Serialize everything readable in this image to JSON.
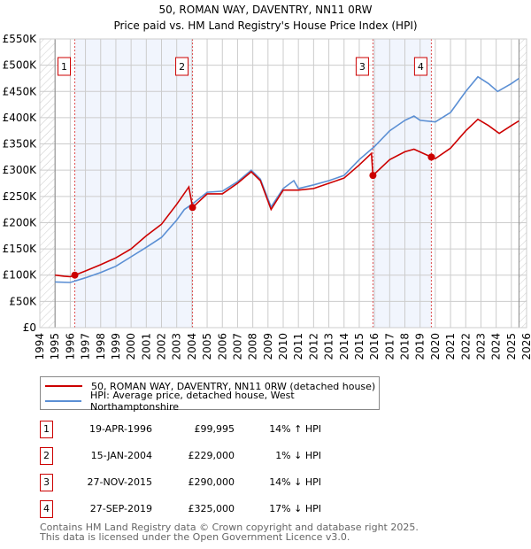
{
  "chart_data": {
    "type": "line",
    "title": "50, ROMAN WAY, DAVENTRY, NN11 0RW",
    "subtitle": "Price paid vs. HM Land Registry's House Price Index (HPI)",
    "xlim": [
      1994,
      2026
    ],
    "ylim": [
      0,
      550000
    ],
    "x_ticks": [
      "1994",
      "1995",
      "1996",
      "1997",
      "1998",
      "1999",
      "2000",
      "2001",
      "2002",
      "2003",
      "2004",
      "2005",
      "2006",
      "2007",
      "2008",
      "2009",
      "2010",
      "2011",
      "2012",
      "2013",
      "2014",
      "2015",
      "2016",
      "2017",
      "2018",
      "2019",
      "2020",
      "2021",
      "2022",
      "2023",
      "2024",
      "2025",
      "2026"
    ],
    "y_ticks": [
      {
        "v": 0,
        "label": "£0"
      },
      {
        "v": 50000,
        "label": "£50K"
      },
      {
        "v": 100000,
        "label": "£100K"
      },
      {
        "v": 150000,
        "label": "£150K"
      },
      {
        "v": 200000,
        "label": "£200K"
      },
      {
        "v": 250000,
        "label": "£250K"
      },
      {
        "v": 300000,
        "label": "£300K"
      },
      {
        "v": 350000,
        "label": "£350K"
      },
      {
        "v": 400000,
        "label": "£400K"
      },
      {
        "v": 450000,
        "label": "£450K"
      },
      {
        "v": 500000,
        "label": "£500K"
      },
      {
        "v": 550000,
        "label": "£550K"
      }
    ],
    "grid": true,
    "data_range": [
      1995,
      2025.5
    ],
    "shaded_periods": [
      [
        1996.3,
        2004.04
      ],
      [
        2015.9,
        2019.74
      ]
    ],
    "series": [
      {
        "name": "50, ROMAN WAY, DAVENTRY, NN11 0RW (detached house)",
        "color": "#cc0000",
        "x": [
          1995,
          1995.6,
          1996,
          1996.3,
          1997,
          1998,
          1999,
          2000,
          2001,
          2002,
          2003,
          2003.8,
          2004.04,
          2005,
          2006,
          2007,
          2007.9,
          2008.5,
          2009.2,
          2010,
          2011,
          2012,
          2013,
          2014,
          2015,
          2015.8,
          2015.9,
          2017,
          2018,
          2018.6,
          2019.74,
          2020,
          2021,
          2022,
          2022.8,
          2023.5,
          2024.2,
          2025,
          2025.5
        ],
        "y": [
          100000,
          98000,
          97000,
          99995,
          108000,
          120000,
          133000,
          150000,
          175000,
          197000,
          235000,
          268000,
          229000,
          255000,
          255000,
          275000,
          297000,
          280000,
          225000,
          262000,
          262000,
          265000,
          275000,
          285000,
          310000,
          332000,
          290000,
          320000,
          335000,
          340000,
          325000,
          322000,
          342000,
          375000,
          397000,
          385000,
          370000,
          385000,
          394000
        ]
      },
      {
        "name": "HPI: Average price, detached house, West Northamptonshire",
        "color": "#5b8fd4",
        "x": [
          1995,
          1996,
          1997,
          1998,
          1999,
          2000,
          2001,
          2002,
          2003,
          2003.5,
          2004,
          2005,
          2006,
          2007,
          2007.9,
          2008.5,
          2009.2,
          2010,
          2010.7,
          2011,
          2012,
          2013,
          2014,
          2015,
          2016,
          2017,
          2018,
          2018.6,
          2019,
          2020,
          2021,
          2022,
          2022.8,
          2023.5,
          2024.1,
          2025,
          2025.5
        ],
        "y": [
          87000,
          86000,
          95000,
          105000,
          117000,
          135000,
          153000,
          172000,
          205000,
          225000,
          235000,
          258000,
          260000,
          278000,
          300000,
          283000,
          230000,
          265000,
          280000,
          265000,
          272000,
          280000,
          290000,
          320000,
          345000,
          375000,
          395000,
          403000,
          395000,
          392000,
          410000,
          450000,
          478000,
          465000,
          450000,
          465000,
          475000
        ]
      }
    ],
    "markers": [
      {
        "id": "1",
        "x": 1996.3,
        "y": 99995
      },
      {
        "id": "2",
        "x": 2004.04,
        "y": 229000
      },
      {
        "id": "3",
        "x": 2015.9,
        "y": 290000
      },
      {
        "id": "4",
        "x": 2019.74,
        "y": 325000
      }
    ]
  },
  "legend": {
    "property": "50, ROMAN WAY, DAVENTRY, NN11 0RW (detached house)",
    "hpi": "HPI: Average price, detached house, West Northamptonshire"
  },
  "transactions": [
    {
      "id": "1",
      "date": "19-APR-1996",
      "price": "£99,995",
      "hpi": "14% ↑ HPI"
    },
    {
      "id": "2",
      "date": "15-JAN-2004",
      "price": "£229,000",
      "hpi": "1% ↓ HPI"
    },
    {
      "id": "3",
      "date": "27-NOV-2015",
      "price": "£290,000",
      "hpi": "14% ↓ HPI"
    },
    {
      "id": "4",
      "date": "27-SEP-2019",
      "price": "£325,000",
      "hpi": "17% ↓ HPI"
    }
  ],
  "footer": {
    "line1": "Contains HM Land Registry data © Crown copyright and database right 2025.",
    "line2": "This data is licensed under the Open Government Licence v3.0."
  }
}
